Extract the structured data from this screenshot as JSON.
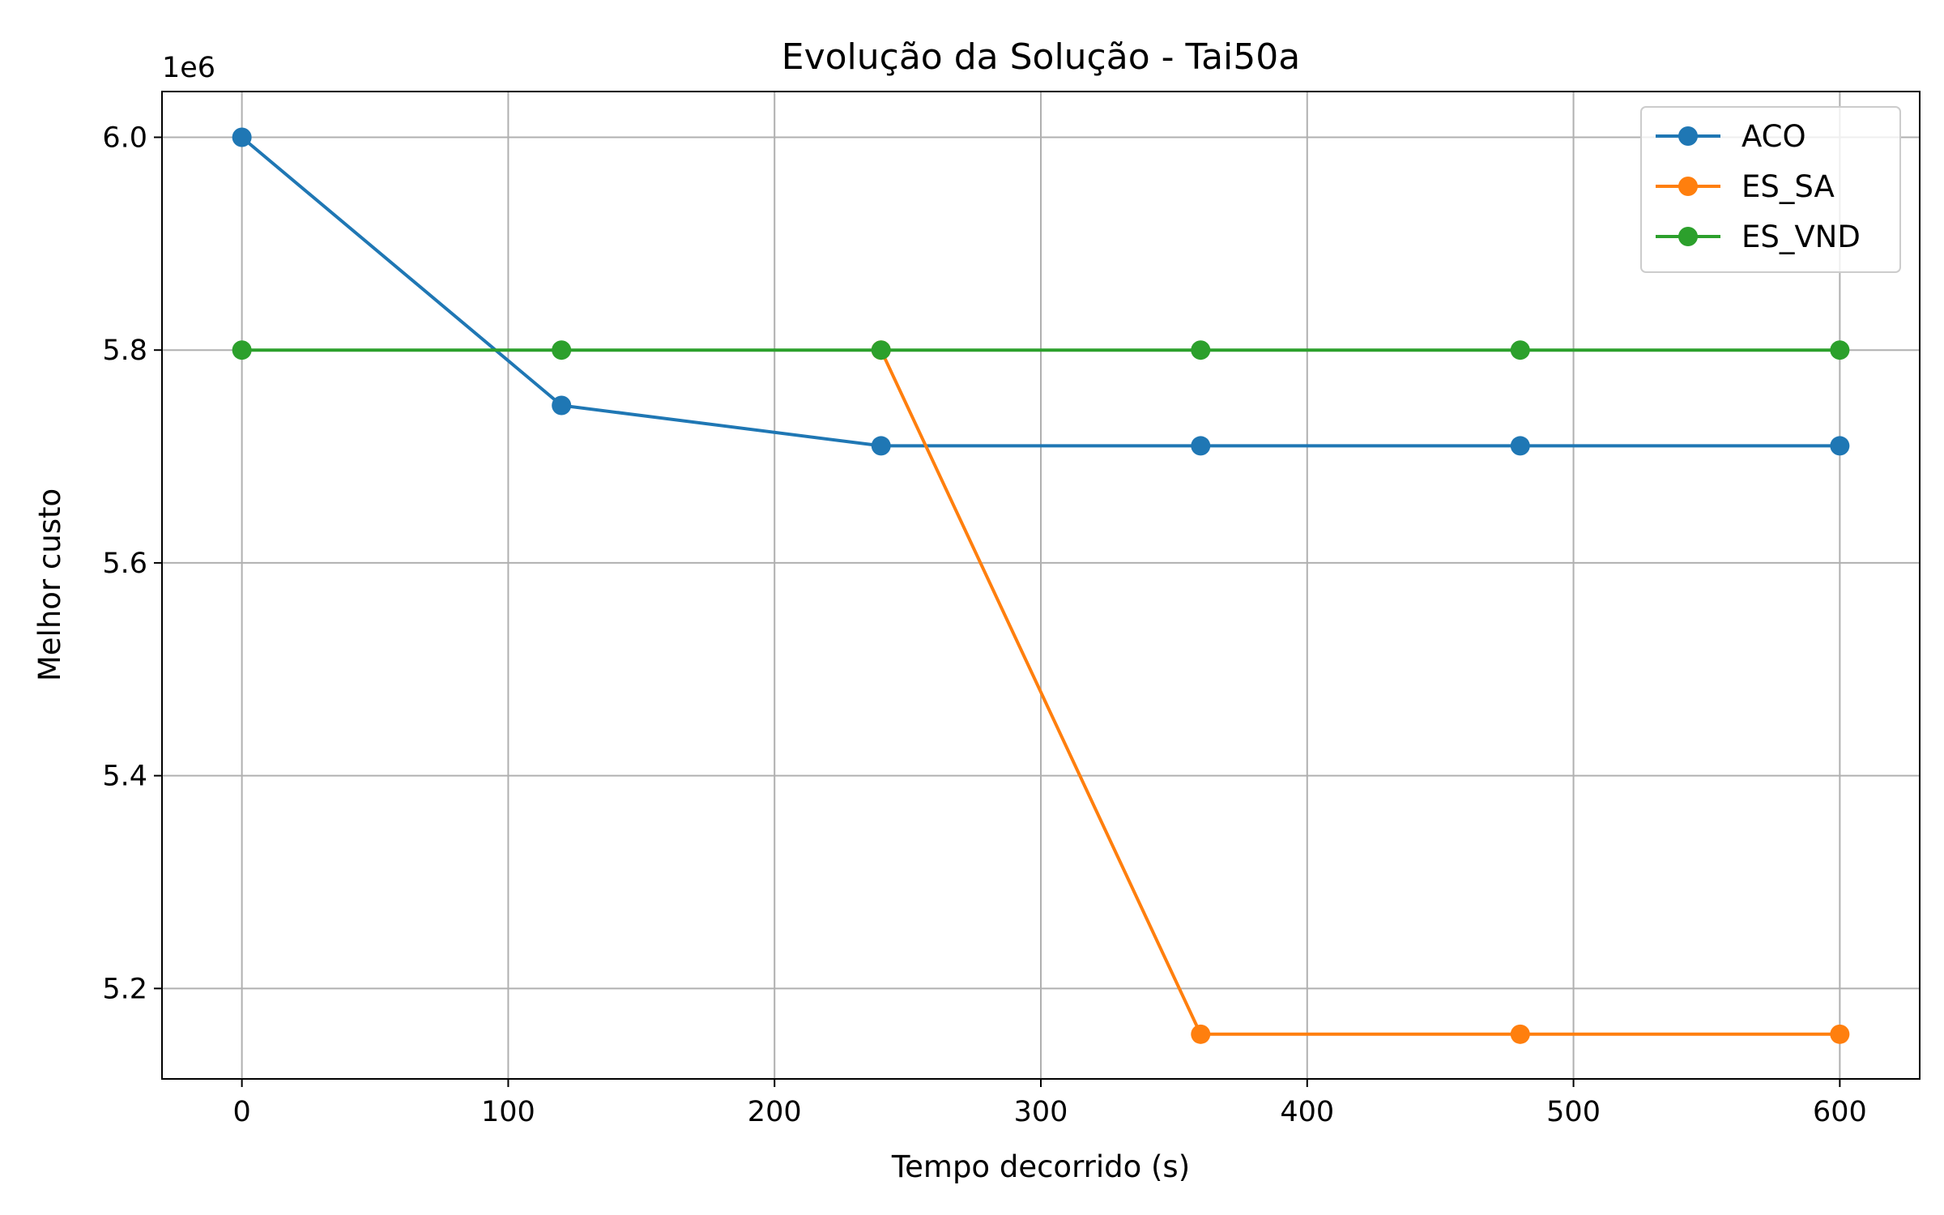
{
  "chart_data": {
    "type": "line",
    "title": "Evolução da Solução - Tai50a",
    "xlabel": "Tempo decorrido (s)",
    "ylabel": "Melhor custo",
    "y_offset_label": "1e6",
    "xlim": [
      -30,
      630
    ],
    "ylim": [
      5.115,
      6.043
    ],
    "xticks": [
      0,
      100,
      200,
      300,
      400,
      500,
      600
    ],
    "yticks": [
      5.2,
      5.4,
      5.6,
      5.8,
      6.0
    ],
    "ytick_labels": [
      "5.2",
      "5.4",
      "5.6",
      "5.8",
      "6.0"
    ],
    "grid": true,
    "legend_position": "upper right",
    "x": [
      0,
      120,
      240,
      360,
      480,
      600
    ],
    "series": [
      {
        "name": "ACO",
        "color": "#1f77b4",
        "marker": "circle",
        "values": [
          6.0,
          5.748,
          5.71,
          5.71,
          5.71,
          5.71
        ]
      },
      {
        "name": "ES_SA",
        "color": "#ff7f0e",
        "marker": "circle",
        "values": [
          null,
          null,
          5.8,
          5.157,
          5.157,
          5.157
        ]
      },
      {
        "name": "ES_VND",
        "color": "#2ca02c",
        "marker": "circle",
        "values": [
          5.8,
          5.8,
          5.8,
          5.8,
          5.8,
          5.8
        ]
      }
    ]
  }
}
